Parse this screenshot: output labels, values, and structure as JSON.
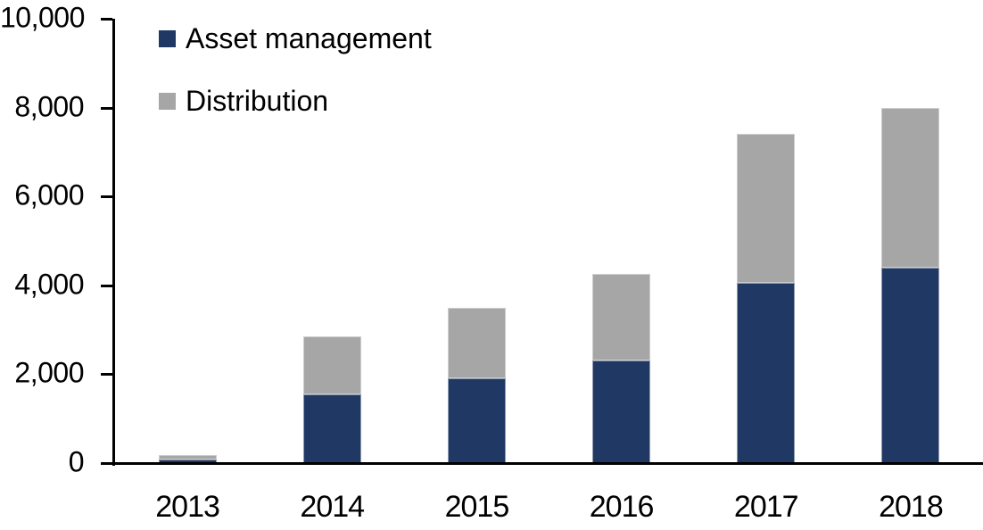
{
  "chart_data": {
    "type": "bar",
    "stacked": true,
    "categories": [
      "2013",
      "2014",
      "2015",
      "2016",
      "2017",
      "2018"
    ],
    "series": [
      {
        "name": "Asset management",
        "color": "#1F3864",
        "values": [
          80,
          1550,
          1900,
          2300,
          4050,
          4400
        ]
      },
      {
        "name": "Distribution",
        "color": "#A6A6A6",
        "values": [
          100,
          1300,
          1600,
          1950,
          3350,
          3600
        ]
      }
    ],
    "totals": [
      180,
      2850,
      3500,
      4250,
      7400,
      8000
    ],
    "ylim": [
      0,
      10000
    ],
    "yticks": [
      {
        "value": 0,
        "label": "0"
      },
      {
        "value": 2000,
        "label": "2,000"
      },
      {
        "value": 4000,
        "label": "4,000"
      },
      {
        "value": 6000,
        "label": "6,000"
      },
      {
        "value": 8000,
        "label": "8,000"
      },
      {
        "value": 10000,
        "label": "10,000"
      }
    ],
    "grid": false,
    "legend_position": "top-left",
    "colors": {
      "axis": "#000000",
      "text": "#000000",
      "background": "#FFFFFF"
    }
  }
}
